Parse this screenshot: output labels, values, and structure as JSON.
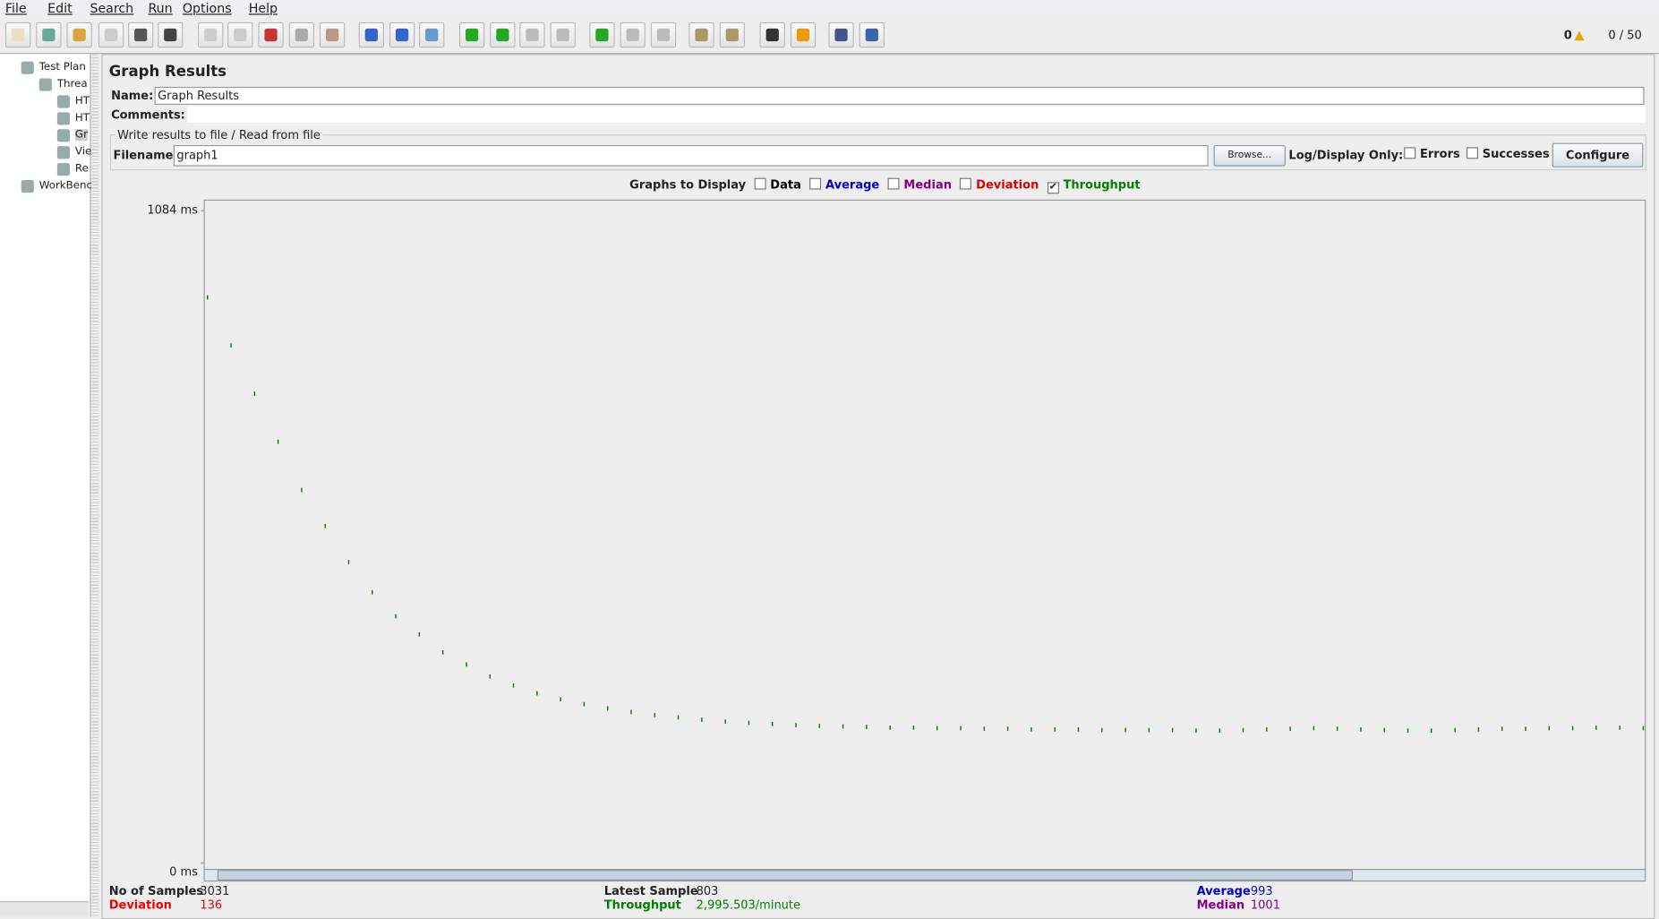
{
  "menu": [
    "File",
    "Edit",
    "Search",
    "Run",
    "Options",
    "Help"
  ],
  "status": {
    "warnings": "0",
    "threads": "0 / 50"
  },
  "tree": [
    "Test Plan",
    "Threa",
    "HT",
    "HT",
    "Gr",
    "Vie",
    "Re",
    "WorkBenc"
  ],
  "panel": {
    "title": "Graph Results",
    "name_label": "Name:",
    "name_value": "Graph Results",
    "comments_label": "Comments:",
    "file_group": "Write results to file / Read from file",
    "filename_label": "Filename",
    "filename_value": "graph1",
    "browse": "Browse...",
    "log_label": "Log/Display Only:",
    "errors": "Errors",
    "successes": "Successes",
    "configure": "Configure"
  },
  "graphs_label": "Graphs to Display",
  "graph_options": [
    {
      "label": "Data",
      "color": "#000000",
      "checked": false
    },
    {
      "label": "Average",
      "color": "#0000cc",
      "checked": false
    },
    {
      "label": "Median",
      "color": "#800080",
      "checked": false
    },
    {
      "label": "Deviation",
      "color": "#dd0000",
      "checked": false
    }
  ],
  "chart_data": {
    "type": "scatter",
    "ylim": [
      0,
      1084
    ],
    "yticks": [
      {
        "value": 1084,
        "label": "1084  ms"
      },
      {
        "value": 0,
        "label": "0  ms"
      }
    ],
    "series": [
      {
        "name": "Throughput",
        "color": "#008000",
        "checked": true,
        "values": [
          940,
          860,
          780,
          700,
          620,
          560,
          500,
          450,
          410,
          380,
          350,
          330,
          310,
          295,
          282,
          272,
          264,
          257,
          251,
          246,
          242,
          238,
          235,
          233,
          231,
          229,
          228,
          227,
          226,
          225,
          225,
          224,
          224,
          223,
          223,
          222,
          222,
          222,
          221,
          221,
          221,
          221,
          220,
          220,
          221,
          222,
          223,
          224,
          223,
          222,
          221,
          220,
          220,
          221,
          222,
          223,
          223,
          224,
          224,
          225,
          225,
          224
        ]
      }
    ]
  },
  "stats": {
    "samples_label": "No of Samples",
    "samples": 3031,
    "latest_label": "Latest Sample",
    "latest": 803,
    "average_label": "Average",
    "average": 993,
    "deviation_label": "Deviation",
    "deviation": 136,
    "throughput_label": "Throughput",
    "throughput": "2,995.503/minute",
    "median_label": "Median",
    "median": 1001
  }
}
